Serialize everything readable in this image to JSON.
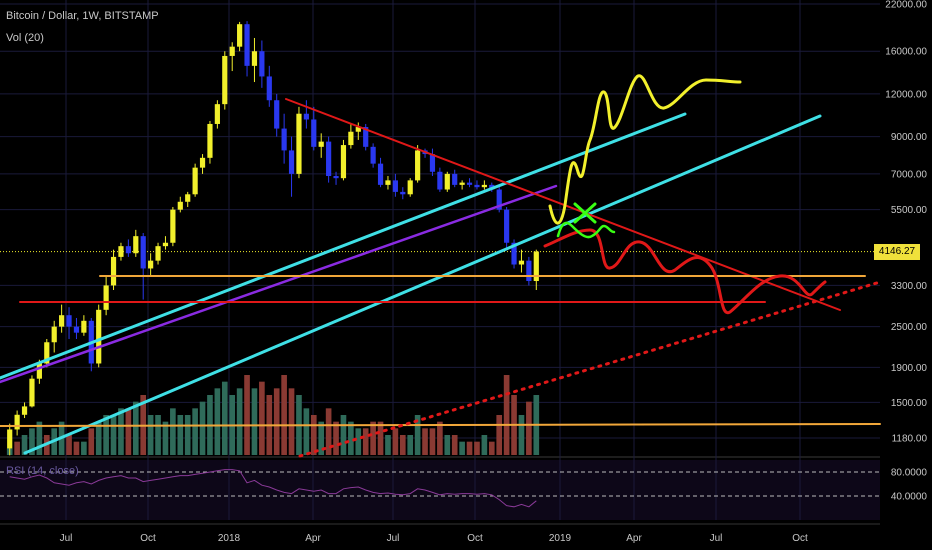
{
  "header": {
    "symbol_line": "Bitcoin / Dollar, 1W, BITSTAMP",
    "volume_line": "Vol (20)",
    "rsi_line": "RSI (14, close)"
  },
  "price_badge": "4146.27",
  "colors": {
    "background": "#000000",
    "grid": "#1a1a3a",
    "bull": "#f2f02c",
    "bear": "#2a38f0",
    "vol_bull": "#2f6b5a",
    "vol_bear": "#8a3a33",
    "cyan": "#3fe0e6",
    "purple": "#8a2be2",
    "red": "#e01818",
    "orange": "#f1a73a",
    "yellow": "#f2f02c",
    "green": "#39ff14",
    "rsi": "#8a3a98"
  },
  "chart_data": {
    "type": "candlestick",
    "title": "Bitcoin / Dollar, 1W, BITSTAMP",
    "y_scale": "log",
    "y_ticks": [
      22000,
      16000,
      12000,
      9000,
      7000,
      5500,
      4146.27,
      3300,
      2500,
      1900,
      1500,
      1180
    ],
    "y_tick_labels": [
      "22000.00",
      "16000.00",
      "12000.00",
      "9000.00",
      "7000.00",
      "5500.00",
      "4146.27",
      "3300.00",
      "2500.00",
      "1900.00",
      "1500.00",
      "1180.00"
    ],
    "x_ticks": [
      "Jul",
      "Oct",
      "2018",
      "Apr",
      "Jul",
      "Oct",
      "2019",
      "Apr",
      "Jul",
      "Oct"
    ],
    "last_price": 4146.27,
    "rsi": {
      "name": "RSI (14, close)",
      "ticks": [
        80,
        40
      ],
      "tick_labels": [
        "80.0000",
        "40.0000"
      ]
    },
    "series": [
      {
        "name": "price",
        "values": [
          [
            1100,
            1300,
            1050,
            1250
          ],
          [
            1250,
            1420,
            1200,
            1380
          ],
          [
            1380,
            1500,
            1350,
            1460
          ],
          [
            1460,
            1800,
            1450,
            1760
          ],
          [
            1760,
            2000,
            1700,
            1950
          ],
          [
            1950,
            2300,
            1900,
            2250
          ],
          [
            2250,
            2600,
            2100,
            2500
          ],
          [
            2500,
            2900,
            2400,
            2700
          ],
          [
            2700,
            2850,
            2300,
            2500
          ],
          [
            2500,
            2650,
            2300,
            2400
          ],
          [
            2400,
            2700,
            2350,
            2600
          ],
          [
            2600,
            2650,
            1850,
            1950
          ],
          [
            1950,
            2900,
            1900,
            2800
          ],
          [
            2800,
            3500,
            2700,
            3300
          ],
          [
            3300,
            4200,
            3200,
            4000
          ],
          [
            4000,
            4400,
            3900,
            4300
          ],
          [
            4300,
            4500,
            4000,
            4100
          ],
          [
            4100,
            4800,
            4000,
            4600
          ],
          [
            4600,
            4700,
            3000,
            3700
          ],
          [
            3700,
            4100,
            3500,
            3900
          ],
          [
            3900,
            4400,
            3800,
            4300
          ],
          [
            4300,
            4600,
            4200,
            4400
          ],
          [
            4400,
            5600,
            4300,
            5500
          ],
          [
            5500,
            6000,
            5400,
            5800
          ],
          [
            5800,
            6200,
            5600,
            6100
          ],
          [
            6100,
            7500,
            6000,
            7300
          ],
          [
            7300,
            8000,
            7000,
            7800
          ],
          [
            7800,
            10000,
            7500,
            9800
          ],
          [
            9800,
            11500,
            9500,
            11200
          ],
          [
            11200,
            16000,
            10800,
            15500
          ],
          [
            15500,
            17000,
            14000,
            16500
          ],
          [
            16500,
            19500,
            16000,
            19200
          ],
          [
            19200,
            19600,
            13500,
            14500
          ],
          [
            14500,
            17500,
            13000,
            16000
          ],
          [
            16000,
            17200,
            12500,
            13500
          ],
          [
            13500,
            14500,
            11000,
            11500
          ],
          [
            11500,
            12000,
            9000,
            9500
          ],
          [
            9500,
            10500,
            7500,
            8200
          ],
          [
            8200,
            9000,
            6000,
            7000
          ],
          [
            7000,
            11000,
            6800,
            10500
          ],
          [
            10500,
            11500,
            9500,
            10100
          ],
          [
            10100,
            11000,
            8200,
            8400
          ],
          [
            8400,
            9200,
            7800,
            8700
          ],
          [
            8700,
            9000,
            6600,
            6900
          ],
          [
            6900,
            7100,
            6500,
            6800
          ],
          [
            6800,
            8800,
            6700,
            8500
          ],
          [
            8500,
            9800,
            8300,
            9300
          ],
          [
            9300,
            9900,
            8800,
            9600
          ],
          [
            9600,
            9800,
            8200,
            8400
          ],
          [
            8400,
            8600,
            7300,
            7500
          ],
          [
            7500,
            7800,
            6400,
            6500
          ],
          [
            6500,
            6900,
            6300,
            6700
          ],
          [
            6700,
            7000,
            6000,
            6200
          ],
          [
            6200,
            6400,
            5900,
            6100
          ],
          [
            6100,
            6800,
            6000,
            6700
          ],
          [
            6700,
            8500,
            6600,
            8200
          ],
          [
            8200,
            8300,
            7800,
            8000
          ],
          [
            8000,
            8300,
            6900,
            7100
          ],
          [
            7100,
            7300,
            6200,
            6300
          ],
          [
            6300,
            7100,
            6200,
            7000
          ],
          [
            7000,
            7200,
            6400,
            6500
          ],
          [
            6500,
            6700,
            6300,
            6600
          ],
          [
            6600,
            6800,
            6400,
            6500
          ],
          [
            6500,
            6700,
            6300,
            6400
          ],
          [
            6400,
            6700,
            6300,
            6500
          ],
          [
            6500,
            6600,
            6200,
            6300
          ],
          [
            6300,
            6400,
            5400,
            5500
          ],
          [
            5500,
            5600,
            4200,
            4400
          ],
          [
            4400,
            4500,
            3700,
            3800
          ],
          [
            3800,
            4200,
            3600,
            3900
          ],
          [
            3900,
            4000,
            3300,
            3400
          ],
          [
            3400,
            4200,
            3200,
            4146
          ]
        ]
      },
      {
        "name": "Vol (20)",
        "values": [
          [
            1,
            1
          ],
          [
            2,
            0
          ],
          [
            3,
            1
          ],
          [
            4,
            1
          ],
          [
            5,
            1
          ],
          [
            3,
            0
          ],
          [
            4,
            1
          ],
          [
            5,
            1
          ],
          [
            3,
            0
          ],
          [
            2,
            0
          ],
          [
            2,
            1
          ],
          [
            4,
            0
          ],
          [
            5,
            1
          ],
          [
            6,
            1
          ],
          [
            6,
            1
          ],
          [
            7,
            1
          ],
          [
            7,
            0
          ],
          [
            8,
            1
          ],
          [
            9,
            0
          ],
          [
            6,
            1
          ],
          [
            6,
            1
          ],
          [
            5,
            1
          ],
          [
            7,
            1
          ],
          [
            6,
            1
          ],
          [
            6,
            1
          ],
          [
            7,
            1
          ],
          [
            8,
            1
          ],
          [
            9,
            1
          ],
          [
            10,
            1
          ],
          [
            11,
            1
          ],
          [
            9,
            1
          ],
          [
            10,
            1
          ],
          [
            12,
            0
          ],
          [
            10,
            1
          ],
          [
            11,
            0
          ],
          [
            9,
            0
          ],
          [
            10,
            0
          ],
          [
            12,
            0
          ],
          [
            10,
            0
          ],
          [
            9,
            1
          ],
          [
            7,
            1
          ],
          [
            6,
            0
          ],
          [
            5,
            1
          ],
          [
            7,
            0
          ],
          [
            5,
            0
          ],
          [
            6,
            1
          ],
          [
            5,
            1
          ],
          [
            4,
            1
          ],
          [
            4,
            0
          ],
          [
            5,
            0
          ],
          [
            5,
            0
          ],
          [
            3,
            1
          ],
          [
            4,
            0
          ],
          [
            3,
            0
          ],
          [
            3,
            1
          ],
          [
            6,
            1
          ],
          [
            4,
            0
          ],
          [
            4,
            0
          ],
          [
            5,
            0
          ],
          [
            3,
            1
          ],
          [
            3,
            0
          ],
          [
            2,
            1
          ],
          [
            2,
            0
          ],
          [
            2,
            0
          ],
          [
            3,
            1
          ],
          [
            2,
            0
          ],
          [
            6,
            0
          ],
          [
            12,
            0
          ],
          [
            9,
            0
          ],
          [
            6,
            1
          ],
          [
            8,
            0
          ],
          [
            9,
            1
          ]
        ]
      },
      {
        "name": "RSI (14, close)",
        "values": [
          72,
          70,
          68,
          72,
          75,
          70,
          62,
          60,
          58,
          62,
          64,
          60,
          66,
          70,
          72,
          74,
          70,
          70,
          64,
          66,
          68,
          70,
          72,
          74,
          74,
          76,
          78,
          80,
          82,
          84,
          84,
          82,
          62,
          66,
          58,
          55,
          50,
          46,
          44,
          52,
          50,
          48,
          50,
          44,
          44,
          52,
          54,
          55,
          50,
          46,
          44,
          45,
          43,
          42,
          44,
          52,
          50,
          46,
          42,
          44,
          43,
          44,
          44,
          43,
          44,
          42,
          34,
          24,
          22,
          26,
          22,
          32
        ]
      }
    ]
  }
}
